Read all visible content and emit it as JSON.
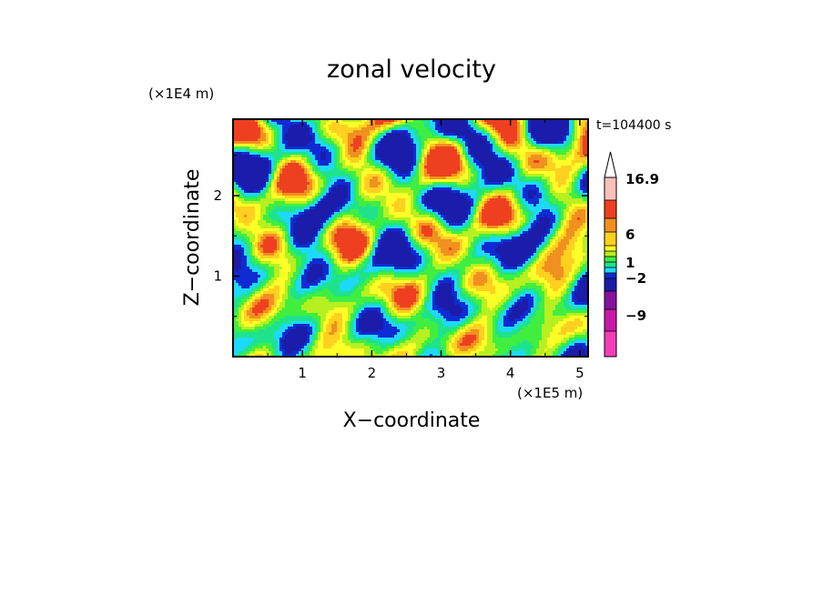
{
  "chart_data": {
    "type": "heatmap",
    "title": "zonal velocity",
    "xlabel": "X−coordinate",
    "ylabel": "Z−coordinate",
    "x_unit": "(×1E5 m)",
    "y_unit": "(×1E4 m)",
    "time_label": "t=104400 s",
    "x_range": [
      0,
      5.12
    ],
    "y_range": [
      0,
      2.95
    ],
    "x_ticks": [
      1,
      2,
      3,
      4,
      5
    ],
    "x_tick_labels": [
      "1",
      "2",
      "3",
      "4",
      "5"
    ],
    "y_ticks": [
      1,
      2
    ],
    "y_tick_labels": [
      "1",
      "2"
    ],
    "colorbar": {
      "max_label": "16.9",
      "levels": [
        -16,
        -12,
        -9,
        -6,
        -3,
        -2,
        -1,
        0,
        1,
        2,
        3,
        6,
        9,
        12,
        16.9
      ],
      "labels": [
        "16.9",
        "6",
        "1",
        "−2",
        "−9"
      ],
      "label_values": [
        16.9,
        6,
        1,
        -2,
        -9
      ],
      "colors": [
        "#f23fb8",
        "#c81aa8",
        "#86129e",
        "#1c1caa",
        "#0f2bd4",
        "#1ed9ff",
        "#1ee38c",
        "#40ee40",
        "#b6f020",
        "#ffff28",
        "#ffd020",
        "#f09020",
        "#ee4020",
        "#f08880",
        "#f8c0b8"
      ]
    }
  }
}
